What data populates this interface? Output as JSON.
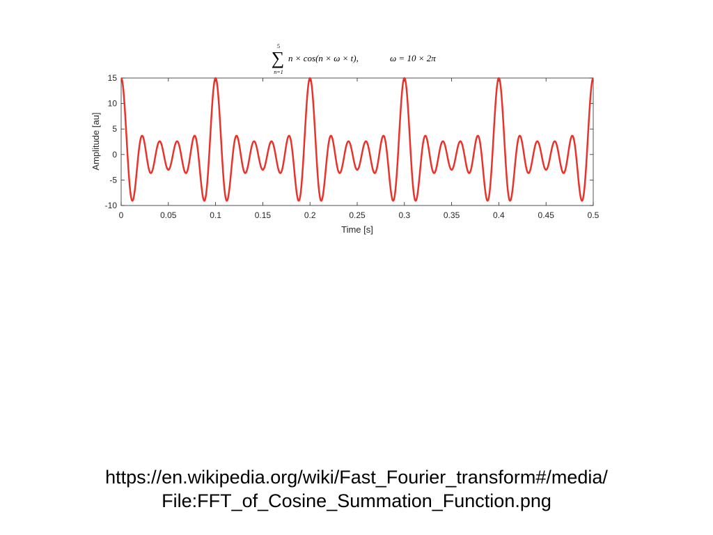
{
  "chart_data": {
    "type": "line",
    "title": {
      "sum_symbol": "∑",
      "sum_upper": "5",
      "sum_lower": "n=1",
      "expression": "n × cos(n × ω × t),",
      "omega": "ω = 10 × 2π"
    },
    "xlabel": "Time [s]",
    "ylabel": "Amplitude [au]",
    "xlim": [
      0,
      0.5
    ],
    "ylim": [
      -10,
      15
    ],
    "x_ticks": [
      0,
      0.05,
      0.1,
      0.15,
      0.2,
      0.25,
      0.3,
      0.35,
      0.4,
      0.45,
      0.5
    ],
    "x_tick_labels": [
      "0",
      "0.05",
      "0.1",
      "0.15",
      "0.2",
      "0.25",
      "0.3",
      "0.35",
      "0.4",
      "0.45",
      "0.5"
    ],
    "y_ticks": [
      15,
      10,
      5,
      0,
      -5,
      -10
    ],
    "y_tick_labels": [
      "15",
      "10",
      "5",
      "0",
      "-5",
      "-10"
    ],
    "grid": false,
    "series": [
      {
        "color": "#e8322a",
        "function": "sum_{n=1}^{5} n*cos(n*omega*t)",
        "omega_hz": 10,
        "n_terms": 5,
        "t_range": [
          0,
          0.5
        ],
        "peaks": [
          {
            "x": 0,
            "y": 15
          },
          {
            "x": 0.1,
            "y": 15
          },
          {
            "x": 0.2,
            "y": 15
          },
          {
            "x": 0.3,
            "y": 15
          },
          {
            "x": 0.4,
            "y": 15
          },
          {
            "x": 0.5,
            "y": 15
          }
        ]
      }
    ]
  },
  "caption": {
    "line1": "https://en.wikipedia.org/wiki/Fast_Fourier_transform#/media/",
    "line2": "File:FFT_of_Cosine_Summation_Function.png"
  }
}
